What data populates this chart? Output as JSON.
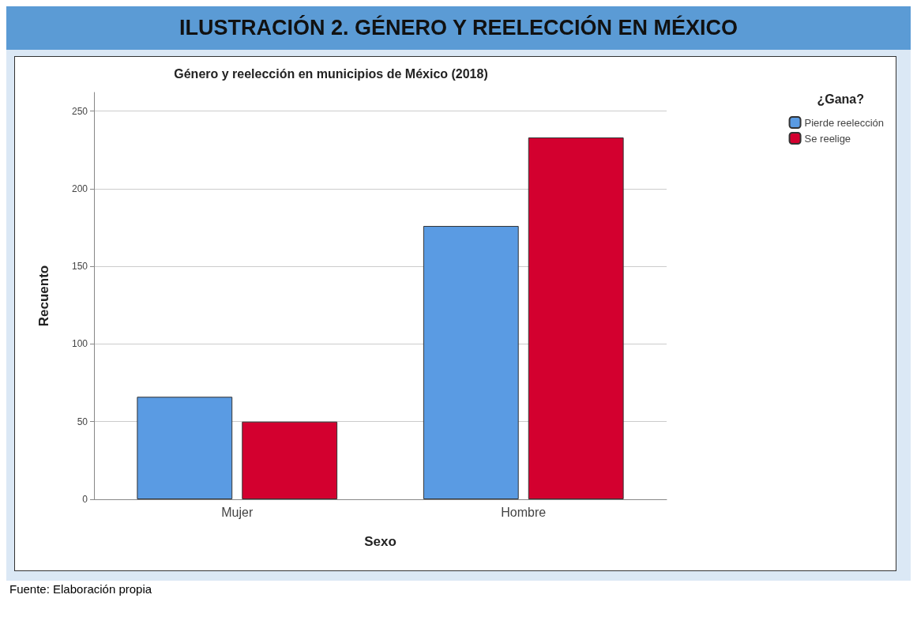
{
  "chart_data": {
    "type": "bar",
    "title": "ILUSTRACIÓN 2. GÉNERO Y REELECCIÓN EN MÉXICO",
    "subtitle": "Género y reelección en municipios de México (2018)",
    "xlabel": "Sexo",
    "ylabel": "Recuento",
    "legend_title": "¿Gana?",
    "annotations": [
      "Fuente: Elaboración propia"
    ],
    "categories": [
      "Mujer",
      "Hombre"
    ],
    "series": [
      {
        "name": "Pierde reelección",
        "color": "#5a9be3",
        "values": [
          66,
          176
        ]
      },
      {
        "name": "Se reelige",
        "color": "#d3002f",
        "values": [
          50,
          233
        ]
      }
    ],
    "ylim": [
      0,
      262
    ],
    "yticks": [
      0,
      50,
      100,
      150,
      200,
      250
    ],
    "grid": "y",
    "legend": "top right"
  }
}
